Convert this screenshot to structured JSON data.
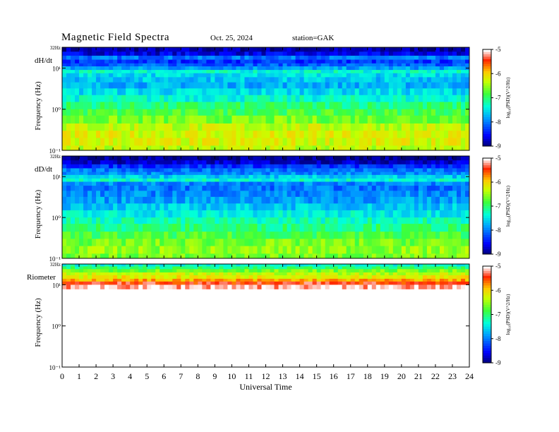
{
  "header": {
    "title": "Magnetic  Field  Spectra",
    "date": "Oct. 25, 2024",
    "station": "station=GAK"
  },
  "chart_data": [
    {
      "type": "heatmap",
      "panel_label": "dH/dt",
      "ylabel": "Frequency  (Hz)",
      "yscale": "log",
      "ylim": [
        0.1,
        32
      ],
      "y_ticks": [
        {
          "value": 0.1,
          "label": "10⁻¹"
        },
        {
          "value": 1,
          "label": "10⁰"
        },
        {
          "value": 10,
          "label": "10¹"
        },
        {
          "value": 32,
          "label": "32Hz"
        }
      ],
      "xlim": [
        0,
        24
      ],
      "colorbar": {
        "label": "log₁₀(PSD)(V^2/Hz)",
        "range": [
          -9,
          -5
        ],
        "ticks": [
          -9,
          -8,
          -7,
          -6,
          -5
        ]
      },
      "rows": [
        {
          "f": 32,
          "v": -8.8
        },
        {
          "f": 25,
          "v": -8.6
        },
        {
          "f": 20,
          "v": -8.0
        },
        {
          "f": 16,
          "v": -8.3
        },
        {
          "f": 13,
          "v": -8.1
        },
        {
          "f": 11,
          "v": -7.8
        },
        {
          "f": 9,
          "v": -7.3
        },
        {
          "f": 7.5,
          "v": -7.5
        },
        {
          "f": 6,
          "v": -7.6
        },
        {
          "f": 4.5,
          "v": -7.7
        },
        {
          "f": 3.2,
          "v": -7.5
        },
        {
          "f": 2.2,
          "v": -7.3
        },
        {
          "f": 1.5,
          "v": -7.0
        },
        {
          "f": 1.0,
          "v": -6.8
        },
        {
          "f": 0.7,
          "v": -6.6
        },
        {
          "f": 0.45,
          "v": -6.3
        },
        {
          "f": 0.3,
          "v": -6.2
        },
        {
          "f": 0.2,
          "v": -6.2
        },
        {
          "f": 0.13,
          "v": -6.3
        }
      ]
    },
    {
      "type": "heatmap",
      "panel_label": "dD/dt",
      "ylabel": "Frequency  (Hz)",
      "yscale": "log",
      "ylim": [
        0.1,
        32
      ],
      "y_ticks": [
        {
          "value": 0.1,
          "label": "10⁻¹"
        },
        {
          "value": 1,
          "label": "10⁰"
        },
        {
          "value": 10,
          "label": "10¹"
        },
        {
          "value": 32,
          "label": "32Hz"
        }
      ],
      "xlim": [
        0,
        24
      ],
      "colorbar": {
        "label": "log₁₀(PSD)(V^2/Hz)",
        "range": [
          -9,
          -5
        ],
        "ticks": [
          -9,
          -8,
          -7,
          -6,
          -5
        ]
      },
      "rows": [
        {
          "f": 32,
          "v": -8.9
        },
        {
          "f": 25,
          "v": -8.7
        },
        {
          "f": 20,
          "v": -8.3
        },
        {
          "f": 16,
          "v": -8.0
        },
        {
          "f": 13,
          "v": -7.9
        },
        {
          "f": 11,
          "v": -7.6
        },
        {
          "f": 9,
          "v": -7.3
        },
        {
          "f": 7.5,
          "v": -7.9
        },
        {
          "f": 6,
          "v": -8.0
        },
        {
          "f": 4.5,
          "v": -7.9
        },
        {
          "f": 3.2,
          "v": -7.8
        },
        {
          "f": 2.2,
          "v": -7.6
        },
        {
          "f": 1.5,
          "v": -7.4
        },
        {
          "f": 1.0,
          "v": -7.2
        },
        {
          "f": 0.7,
          "v": -7.0
        },
        {
          "f": 0.45,
          "v": -6.8
        },
        {
          "f": 0.3,
          "v": -6.6
        },
        {
          "f": 0.2,
          "v": -6.5
        },
        {
          "f": 0.13,
          "v": -6.6
        }
      ]
    },
    {
      "type": "heatmap",
      "panel_label": "Riometer",
      "ylabel": "Frequency  (Hz)",
      "yscale": "log",
      "ylim": [
        0.1,
        32
      ],
      "y_ticks": [
        {
          "value": 0.1,
          "label": "10⁻¹"
        },
        {
          "value": 1,
          "label": "10⁰"
        },
        {
          "value": 10,
          "label": "10¹"
        },
        {
          "value": 32,
          "label": "32Hz"
        }
      ],
      "xlim": [
        0,
        24
      ],
      "colorbar": {
        "label": "log₁₀(PSD)(V^2/Hz)",
        "range": [
          -9,
          -5
        ],
        "ticks": [
          -9,
          -8,
          -7,
          -6,
          -5
        ]
      },
      "rows": [
        {
          "f": 32,
          "v": -7.3
        },
        {
          "f": 28,
          "v": -7.0
        },
        {
          "f": 24,
          "v": -6.6
        },
        {
          "f": 20,
          "v": -6.3
        },
        {
          "f": 17,
          "v": -6.1
        },
        {
          "f": 14,
          "v": -5.8
        },
        {
          "f": 12,
          "v": -5.4
        },
        {
          "f": 10,
          "v": -5.1
        }
      ]
    }
  ],
  "xaxis": {
    "label": "Universal  Time",
    "ticks": [
      "0",
      "1",
      "2",
      "3",
      "4",
      "5",
      "6",
      "7",
      "8",
      "9",
      "10",
      "11",
      "12",
      "13",
      "14",
      "15",
      "16",
      "17",
      "18",
      "19",
      "20",
      "21",
      "22",
      "23",
      "24"
    ]
  }
}
